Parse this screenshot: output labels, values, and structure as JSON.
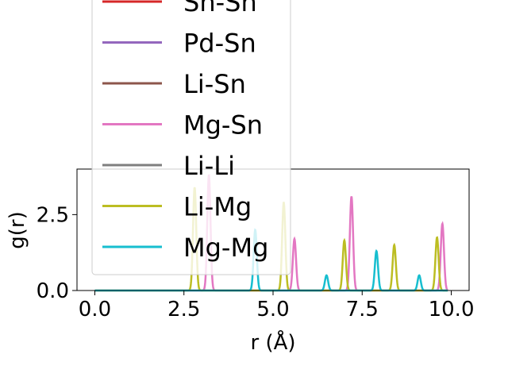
{
  "chart_data": {
    "type": "line",
    "xlabel": "r (Å)",
    "ylabel": "g(r)",
    "xlim": [
      -0.5,
      10.5
    ],
    "ylim": [
      0,
      4.0
    ],
    "x_ticks": [
      "0.0",
      "2.5",
      "5.0",
      "7.5",
      "10.0"
    ],
    "y_ticks": [
      "0.0",
      "2.5"
    ],
    "x_tick_values": [
      0,
      2.5,
      5.0,
      7.5,
      10.0
    ],
    "y_tick_values": [
      0,
      2.5
    ],
    "grid": false,
    "legend_placement": "upper-left",
    "series": [
      {
        "name": "Sn-Sn",
        "color": "#d62728",
        "peaks": []
      },
      {
        "name": "Pd-Sn",
        "color": "#9467bd",
        "peaks": []
      },
      {
        "name": "Li-Sn",
        "color": "#8c564b",
        "peaks": []
      },
      {
        "name": "Mg-Sn",
        "color": "#e377c2",
        "peaks": [
          [
            3.2,
            3.8
          ],
          [
            5.6,
            1.7
          ],
          [
            7.2,
            3.1
          ],
          [
            9.75,
            2.2
          ]
        ]
      },
      {
        "name": "Li-Li",
        "color": "#7f7f7f",
        "peaks": []
      },
      {
        "name": "Li-Mg",
        "color": "#bcbd22",
        "peaks": [
          [
            2.8,
            3.4
          ],
          [
            5.3,
            2.9
          ],
          [
            7.0,
            1.65
          ],
          [
            8.4,
            1.5
          ],
          [
            9.6,
            1.75
          ]
        ]
      },
      {
        "name": "Mg-Mg",
        "color": "#17becf",
        "peaks": [
          [
            4.5,
            2.0
          ],
          [
            6.5,
            0.5
          ],
          [
            7.9,
            1.3
          ],
          [
            9.1,
            0.5
          ]
        ]
      }
    ],
    "r_max": 9.9
  }
}
